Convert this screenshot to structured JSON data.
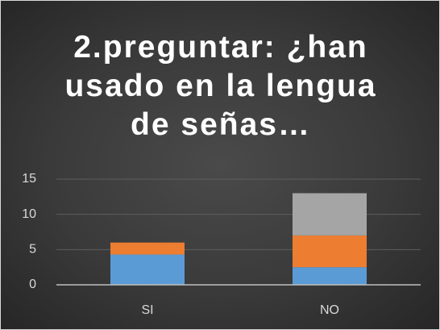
{
  "chart_data": {
    "type": "stacked_bar",
    "title": "2.preguntar: ¿han usado en la lengua de señas…",
    "categories": [
      "SI",
      "NO"
    ],
    "series": [
      {
        "color": "#5b9bd5",
        "values": [
          4.3,
          2.5
        ]
      },
      {
        "color": "#ed7d31",
        "values": [
          1.7,
          4.5
        ]
      },
      {
        "color": "#a5a5a5",
        "values": [
          0,
          6
        ]
      }
    ],
    "ylim": [
      0,
      15
    ],
    "yticks": [
      0,
      5,
      10,
      15
    ],
    "grid": true
  }
}
